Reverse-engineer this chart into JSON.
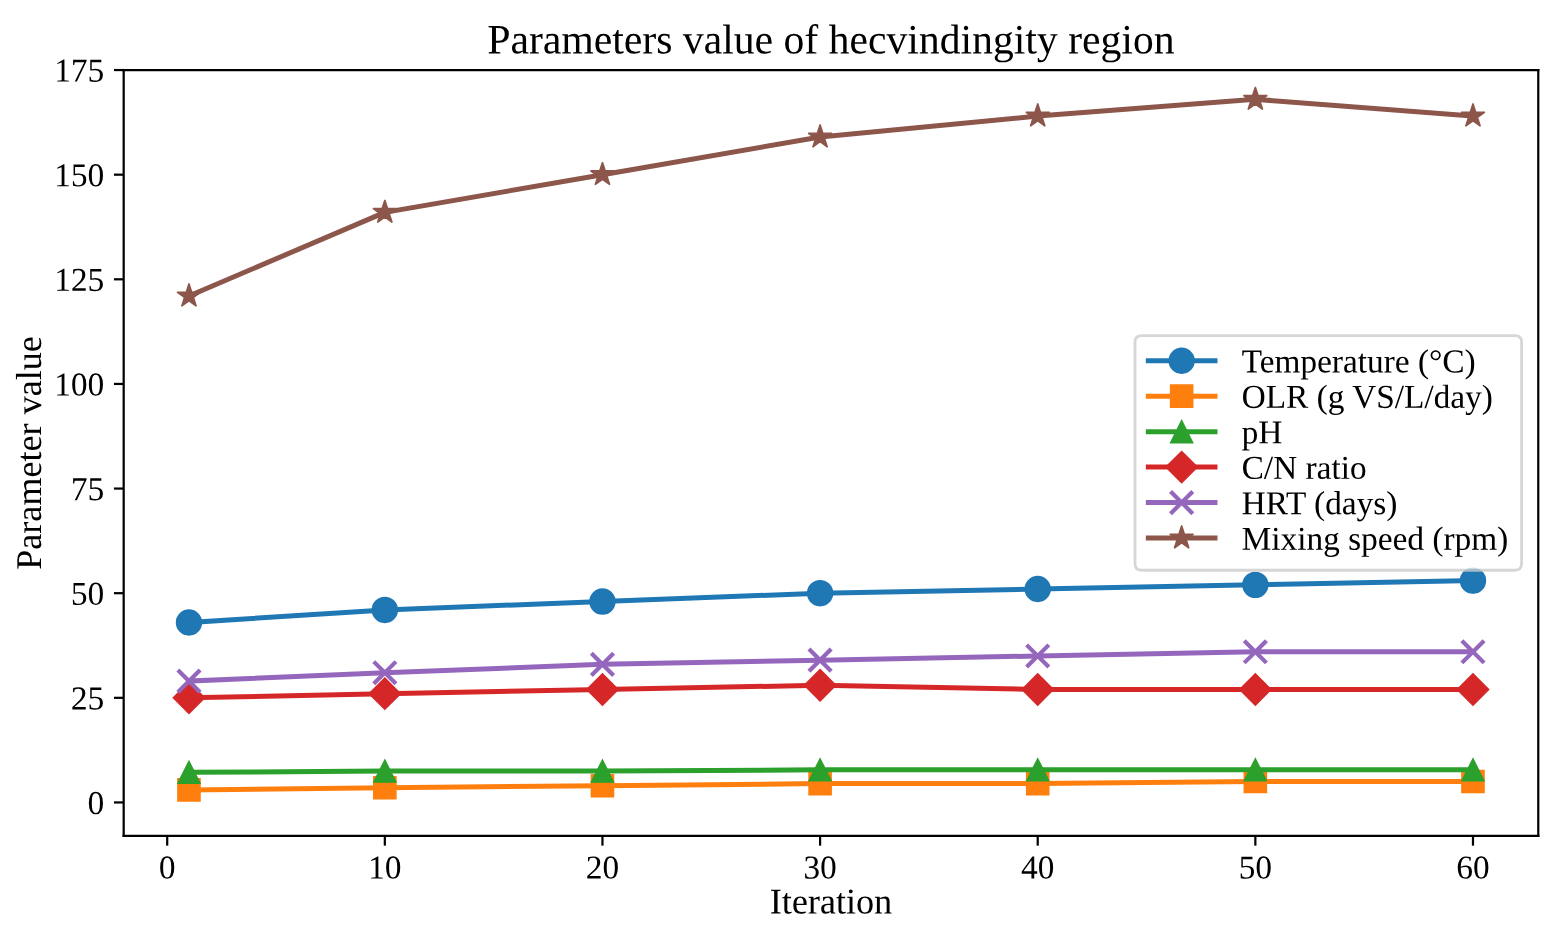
{
  "chart_data": {
    "type": "line",
    "title": "Parameters value of hecvindingity region",
    "xlabel": "Iteration",
    "ylabel": "Parameter value",
    "x": [
      1,
      10,
      20,
      30,
      40,
      50,
      60
    ],
    "series": [
      {
        "name": "Temperature (°C)",
        "color": "#1f77b4",
        "marker": "circle",
        "values": [
          43,
          46,
          48,
          50,
          51,
          52,
          53
        ]
      },
      {
        "name": "OLR (g VS/L/day)",
        "color": "#ff7f0e",
        "marker": "square",
        "values": [
          3,
          3.5,
          4,
          4.5,
          4.5,
          5,
          5
        ]
      },
      {
        "name": "pH",
        "color": "#2ca02c",
        "marker": "triangle",
        "values": [
          7.2,
          7.5,
          7.5,
          7.8,
          7.8,
          7.8,
          7.8
        ]
      },
      {
        "name": "C/N ratio",
        "color": "#d62728",
        "marker": "diamond",
        "values": [
          25,
          26,
          27,
          28,
          27,
          27,
          27
        ]
      },
      {
        "name": "HRT (days)",
        "color": "#9467bd",
        "marker": "cross",
        "values": [
          29,
          31,
          33,
          34,
          35,
          36,
          36
        ]
      },
      {
        "name": "Mixing speed (rpm)",
        "color": "#8c564b",
        "marker": "star",
        "values": [
          121,
          141,
          150,
          159,
          164,
          168,
          164
        ]
      }
    ],
    "xlim": [
      -2,
      63
    ],
    "xticks": [
      0,
      10,
      20,
      30,
      40,
      50,
      60
    ],
    "ylim": [
      -8,
      175
    ],
    "yticks": [
      0,
      25,
      50,
      75,
      100,
      125,
      150,
      175
    ],
    "legend": "right",
    "grid": false
  }
}
